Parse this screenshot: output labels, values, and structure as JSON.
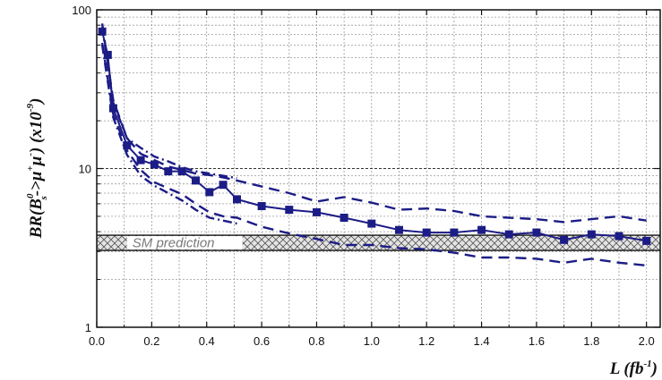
{
  "chart_data": {
    "type": "line",
    "title": "",
    "xlabel": "L (fb",
    "xlabel_sup": "-1",
    "xlabel_close": ")",
    "ylabel": {
      "prefix": "BR(B",
      "sup0": "0",
      "sub_s": "s",
      "middle": "->μ",
      "sup_plus": "+",
      "mu2": "μ",
      "sup_minus": "-",
      "suffix": ")  (x10",
      "sup_exp": "-9",
      "close": ")"
    },
    "xlim": [
      0.0,
      2.05
    ],
    "ylim": [
      1,
      100
    ],
    "y_scale": "log",
    "grid": true,
    "x_ticks": [
      "0.0",
      "0.2",
      "0.4",
      "0.6",
      "0.8",
      "1.0",
      "1.2",
      "1.4",
      "1.6",
      "1.8",
      "2.0"
    ],
    "y_ticks": [
      "1",
      "10",
      "100"
    ],
    "band": {
      "label": "SM prediction",
      "y_low": 3.05,
      "y_high": 3.8,
      "x_range": [
        0.0,
        2.05
      ]
    },
    "series": [
      {
        "name": "",
        "style": "solid-square-markers",
        "color": "#1c1c86",
        "x": [
          0.02,
          0.04,
          0.06,
          0.11,
          0.16,
          0.21,
          0.26,
          0.31,
          0.36,
          0.41,
          0.46,
          0.51,
          0.6,
          0.7,
          0.8,
          0.9,
          1.0,
          1.1,
          1.2,
          1.3,
          1.4,
          1.5,
          1.6,
          1.7,
          1.8,
          1.9,
          2.0
        ],
        "y": [
          73,
          52,
          24,
          14,
          11.3,
          10.6,
          9.6,
          9.6,
          8.4,
          7.1,
          7.9,
          6.4,
          5.8,
          5.5,
          5.3,
          4.9,
          4.5,
          4.1,
          3.95,
          3.95,
          4.1,
          3.85,
          3.95,
          3.55,
          3.85,
          3.75,
          3.5
        ]
      },
      {
        "name": "",
        "style": "dashed",
        "color": "#1c1c86",
        "x": [
          0.02,
          0.06,
          0.11,
          0.16,
          0.21,
          0.26,
          0.31,
          0.36,
          0.41,
          0.46,
          0.51,
          0.6,
          0.7,
          0.8,
          0.9,
          1.0,
          1.1,
          1.2,
          1.3,
          1.4,
          1.5,
          1.6,
          1.7,
          1.8,
          1.9,
          2.0
        ],
        "y": [
          82,
          27,
          15.5,
          12.4,
          11.3,
          10.3,
          9.8,
          9.3,
          9.1,
          8.8,
          8.4,
          7.7,
          7.0,
          6.2,
          6.6,
          6.1,
          5.5,
          5.6,
          5.4,
          5.0,
          4.9,
          4.8,
          4.6,
          4.8,
          5.0,
          4.7
        ]
      },
      {
        "name": "",
        "style": "dashed",
        "color": "#1c1c86",
        "x": [
          0.02,
          0.06,
          0.11,
          0.16,
          0.21,
          0.26,
          0.31,
          0.36,
          0.41,
          0.46,
          0.51,
          0.6,
          0.7,
          0.8,
          0.9,
          1.0,
          1.1,
          1.2,
          1.3,
          1.4,
          1.5,
          1.6,
          1.7,
          1.8,
          1.9,
          2.0
        ],
        "y": [
          62,
          22,
          13,
          9.8,
          8.2,
          7.5,
          6.9,
          6.0,
          5.3,
          5.0,
          4.9,
          4.3,
          3.9,
          3.6,
          3.3,
          3.3,
          3.15,
          3.1,
          2.95,
          2.75,
          2.75,
          2.7,
          2.55,
          2.7,
          2.55,
          2.45
        ]
      },
      {
        "name": "",
        "style": "dash-dot",
        "color": "#1c1c86",
        "x": [
          0.02,
          0.06,
          0.11,
          0.16,
          0.21,
          0.26,
          0.31,
          0.36,
          0.41,
          0.46,
          0.51
        ],
        "y": [
          78,
          26,
          15.5,
          13.5,
          11.9,
          11.1,
          10.2,
          9.6,
          9.3,
          9.0,
          8.7
        ]
      },
      {
        "name": "",
        "style": "dash-dot",
        "color": "#1c1c86",
        "x": [
          0.02,
          0.06,
          0.11,
          0.16,
          0.21,
          0.26,
          0.31,
          0.36,
          0.41,
          0.46,
          0.51
        ],
        "y": [
          60,
          21,
          12.2,
          9.0,
          7.8,
          7.0,
          6.3,
          5.5,
          4.9,
          4.7,
          4.5
        ]
      }
    ]
  }
}
